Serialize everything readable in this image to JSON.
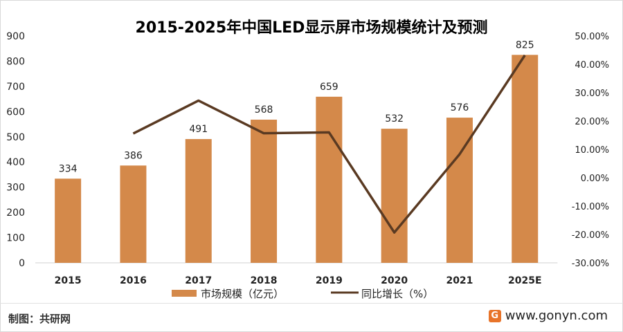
{
  "chart_data": {
    "type": "bar+line",
    "title": "2015-2025年中国LED显示屏市场规模统计及预测",
    "categories": [
      "2015",
      "2016",
      "2017",
      "2018",
      "2019",
      "2020",
      "2021",
      "2025E"
    ],
    "series": [
      {
        "name": "市场规模（亿元）",
        "type": "bar",
        "axis": "left",
        "color": "#d4894a",
        "values": [
          334,
          386,
          491,
          568,
          659,
          532,
          576,
          825
        ],
        "labels": [
          "334",
          "386",
          "491",
          "568",
          "659",
          "532",
          "576",
          "825"
        ]
      },
      {
        "name": "同比增长（%）",
        "type": "line",
        "axis": "right",
        "color": "#5a3a22",
        "values": [
          null,
          15.6,
          27.2,
          15.7,
          16.0,
          -19.3,
          8.3,
          43.2
        ]
      }
    ],
    "ylim_left": [
      0,
      900
    ],
    "yticks_left": [
      "0",
      "100",
      "200",
      "300",
      "400",
      "500",
      "600",
      "700",
      "800",
      "900"
    ],
    "ylim_right": [
      -30,
      50
    ],
    "yticks_right": [
      "-30.00%",
      "-20.00%",
      "-10.00%",
      "0.00%",
      "10.00%",
      "20.00%",
      "30.00%",
      "40.00%",
      "50.00%"
    ],
    "grid": false,
    "legend": "bottom"
  },
  "footer": {
    "source": "制图：共研网",
    "logo_text": "G",
    "website": "www.gonyn.com"
  }
}
